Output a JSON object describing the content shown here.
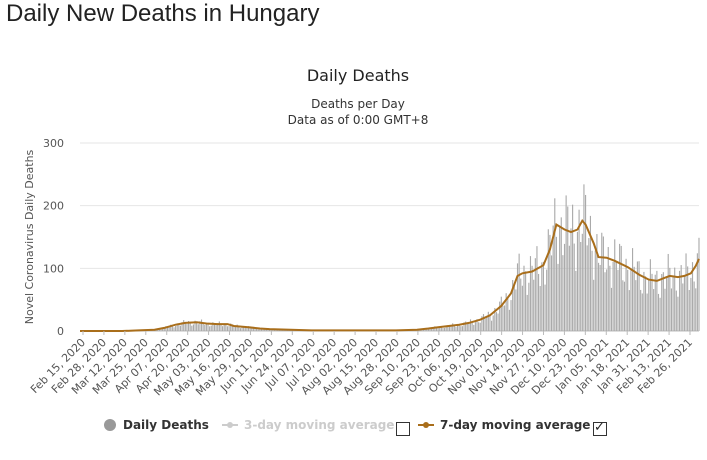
{
  "page": {
    "title": "Daily New Deaths in Hungary"
  },
  "chart_data": {
    "type": "bar",
    "title": "Daily Deaths",
    "subtitle_line1": "Deaths per Day",
    "subtitle_line2": "Data as of 0:00 GMT+8",
    "ylabel": "Novel Coronavirus Daily Deaths",
    "ylim": [
      0,
      300
    ],
    "yticks": [
      0,
      100,
      200,
      300
    ],
    "x_start": "2020-02-15",
    "x_end": "2021-03-03",
    "x_tick_labels": [
      "Feb 15, 2020",
      "Feb 28, 2020",
      "Mar 12, 2020",
      "Mar 25, 2020",
      "Apr 07, 2020",
      "Apr 20, 2020",
      "May 03, 2020",
      "May 16, 2020",
      "May 29, 2020",
      "Jun 11, 2020",
      "Jun 24, 2020",
      "Jul 07, 2020",
      "Jul 20, 2020",
      "Aug 02, 2020",
      "Aug 15, 2020",
      "Aug 28, 2020",
      "Sep 10, 2020",
      "Sep 23, 2020",
      "Oct 06, 2020",
      "Oct 19, 2020",
      "Nov 01, 2020",
      "Nov 14, 2020",
      "Nov 27, 2020",
      "Dec 10, 2020",
      "Dec 23, 2020",
      "Jan 05, 2021",
      "Jan 18, 2021",
      "Jan 31, 2021",
      "Feb 13, 2021",
      "Feb 26, 2021"
    ],
    "grid": true,
    "legend_position": "bottom",
    "colors": {
      "bars": "#aaaaaa",
      "moving_avg_7": "#a96e1b",
      "moving_avg_3": "#cccccc",
      "grid": "#e6e6e6"
    },
    "moving_avg_7": [
      [
        "2020-02-15",
        0
      ],
      [
        "2020-03-12",
        0
      ],
      [
        "2020-03-22",
        1
      ],
      [
        "2020-04-01",
        2
      ],
      [
        "2020-04-07",
        5
      ],
      [
        "2020-04-14",
        10
      ],
      [
        "2020-04-20",
        13
      ],
      [
        "2020-04-27",
        14
      ],
      [
        "2020-05-03",
        12
      ],
      [
        "2020-05-10",
        11
      ],
      [
        "2020-05-16",
        11
      ],
      [
        "2020-05-20",
        8
      ],
      [
        "2020-05-29",
        6
      ],
      [
        "2020-06-05",
        4
      ],
      [
        "2020-06-11",
        3
      ],
      [
        "2020-06-24",
        2
      ],
      [
        "2020-07-07",
        1
      ],
      [
        "2020-07-20",
        1
      ],
      [
        "2020-08-02",
        1
      ],
      [
        "2020-08-15",
        1
      ],
      [
        "2020-08-28",
        1
      ],
      [
        "2020-09-10",
        2
      ],
      [
        "2020-09-17",
        4
      ],
      [
        "2020-09-23",
        6
      ],
      [
        "2020-10-06",
        10
      ],
      [
        "2020-10-12",
        13
      ],
      [
        "2020-10-19",
        18
      ],
      [
        "2020-10-25",
        25
      ],
      [
        "2020-11-01",
        40
      ],
      [
        "2020-11-07",
        60
      ],
      [
        "2020-11-11",
        88
      ],
      [
        "2020-11-14",
        92
      ],
      [
        "2020-11-20",
        95
      ],
      [
        "2020-11-27",
        105
      ],
      [
        "2020-12-01",
        130
      ],
      [
        "2020-12-05",
        170
      ],
      [
        "2020-12-10",
        162
      ],
      [
        "2020-12-14",
        158
      ],
      [
        "2020-12-18",
        162
      ],
      [
        "2020-12-21",
        176
      ],
      [
        "2020-12-23",
        170
      ],
      [
        "2020-12-28",
        140
      ],
      [
        "2020-12-31",
        118
      ],
      [
        "2021-01-05",
        117
      ],
      [
        "2021-01-10",
        112
      ],
      [
        "2021-01-18",
        102
      ],
      [
        "2021-01-25",
        90
      ],
      [
        "2021-01-31",
        82
      ],
      [
        "2021-02-05",
        80
      ],
      [
        "2021-02-10",
        85
      ],
      [
        "2021-02-13",
        88
      ],
      [
        "2021-02-18",
        86
      ],
      [
        "2021-02-22",
        88
      ],
      [
        "2021-02-26",
        92
      ],
      [
        "2021-03-01",
        104
      ],
      [
        "2021-03-03",
        115
      ]
    ]
  },
  "legend": {
    "daily_deaths": "Daily Deaths",
    "moving_avg_3": "3-day moving average",
    "moving_avg_7": "7-day moving average",
    "moving_avg_3_checked": false,
    "moving_avg_7_checked": true
  }
}
